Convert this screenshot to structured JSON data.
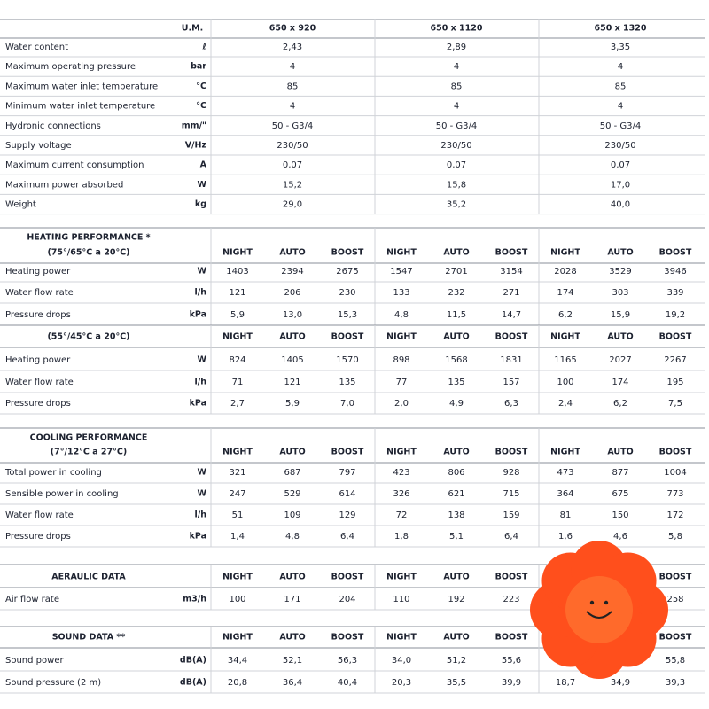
{
  "top_table": {
    "header": [
      "U.M.",
      "650 x 920",
      "650 x 1120",
      "650 x 1320"
    ],
    "rows": [
      [
        "Water content",
        "ℓ",
        "2,43",
        "2,89",
        "3,35"
      ],
      [
        "Maximum operating pressure",
        "bar",
        "4",
        "4",
        "4"
      ],
      [
        "Maximum water inlet temperature",
        "°C",
        "85",
        "85",
        "85"
      ],
      [
        "Minimum water inlet temperature",
        "°C",
        "4",
        "4",
        "4"
      ],
      [
        "Hydronic connections",
        "mm/\"",
        "50 - G3/4",
        "50 - G3/4",
        "50 - G3/4"
      ],
      [
        "Supply voltage",
        "V/Hz",
        "230/50",
        "230/50",
        "230/50"
      ],
      [
        "Maximum current consumption",
        "A",
        "0,07",
        "0,07",
        "0,07"
      ],
      [
        "Maximum power absorbed",
        "W",
        "15,2",
        "15,8",
        "17,0"
      ],
      [
        "Weight",
        "kg",
        "29,0",
        "35,2",
        "40,0"
      ]
    ]
  },
  "sections": [
    {
      "title": [
        "HEATING PERFORMANCE *",
        "(75°/65°C a 20°C)"
      ],
      "columns": [
        "NIGHT",
        "AUTO",
        "BOOST",
        "NIGHT",
        "AUTO",
        "BOOST",
        "NIGHT",
        "AUTO",
        "BOOST"
      ],
      "rows": [
        [
          "Heating power",
          "W",
          "1403",
          "2394",
          "2675",
          "1547",
          "2701",
          "3154",
          "2028",
          "3529",
          "3946"
        ],
        [
          "Water flow rate",
          "l/h",
          "121",
          "206",
          "230",
          "133",
          "232",
          "271",
          "174",
          "303",
          "339"
        ],
        [
          "Pressure drops",
          "kPa",
          "5,9",
          "13,0",
          "15,3",
          "4,8",
          "11,5",
          "14,7",
          "6,2",
          "15,9",
          "19,2"
        ]
      ]
    },
    {
      "title": [
        "(55°/45°C a 20°C)"
      ],
      "columns": [
        "NIGHT",
        "AUTO",
        "BOOST",
        "NIGHT",
        "AUTO",
        "BOOST",
        "NIGHT",
        "AUTO",
        "BOOST"
      ],
      "rows": [
        [
          "Heating power",
          "W",
          "824",
          "1405",
          "1570",
          "898",
          "1568",
          "1831",
          "1165",
          "2027",
          "2267"
        ],
        [
          "Water flow rate",
          "l/h",
          "71",
          "121",
          "135",
          "77",
          "135",
          "157",
          "100",
          "174",
          "195"
        ],
        [
          "Pressure drops",
          "kPa",
          "2,7",
          "5,9",
          "7,0",
          "2,0",
          "4,9",
          "6,3",
          "2,4",
          "6,2",
          "7,5"
        ]
      ]
    },
    {
      "title": [
        "COOLING PERFORMANCE",
        "(7°/12°C a 27°C)"
      ],
      "columns": [
        "NIGHT",
        "AUTO",
        "BOOST",
        "NIGHT",
        "AUTO",
        "BOOST",
        "NIGHT",
        "AUTO",
        "BOOST"
      ],
      "rows": [
        [
          "Total power in cooling",
          "W",
          "321",
          "687",
          "797",
          "423",
          "806",
          "928",
          "473",
          "877",
          "1004"
        ],
        [
          "Sensible power in cooling",
          "W",
          "247",
          "529",
          "614",
          "326",
          "621",
          "715",
          "364",
          "675",
          "773"
        ],
        [
          "Water flow rate",
          "l/h",
          "51",
          "109",
          "129",
          "72",
          "138",
          "159",
          "81",
          "150",
          "172"
        ],
        [
          "Pressure drops",
          "kPa",
          "1,4",
          "4,8",
          "6,4",
          "1,8",
          "5,1",
          "6,4",
          "1,6",
          "4,6",
          "5,8"
        ]
      ]
    },
    {
      "title": [
        "AERAULIC DATA"
      ],
      "columns": [
        "NIGHT",
        "AUTO",
        "BOOST",
        "NIGHT",
        "AUTO",
        "BOOST",
        null,
        null,
        "BOOST"
      ],
      "rows": [
        [
          "Air flow rate",
          "m3/h",
          "100",
          "171",
          "204",
          "110",
          "192",
          "223",
          null,
          null,
          "258"
        ]
      ]
    },
    {
      "title": [
        "SOUND DATA **"
      ],
      "columns": [
        "NIGHT",
        "AUTO",
        "BOOST",
        "NIGHT",
        "AUTO",
        "BOOST",
        null,
        null,
        "BOOST"
      ],
      "rows": [
        [
          "Sound power",
          "dB(A)",
          "34,4",
          "52,1",
          "56,3",
          "34,0",
          "51,2",
          "55,6",
          null,
          null,
          "55,8"
        ],
        [
          "Sound pressure  (2 m)",
          "dB(A)",
          "20,8",
          "36,4",
          "40,4",
          "20,3",
          "35,5",
          "39,9",
          "18,7",
          "34,9",
          "39,3"
        ]
      ]
    }
  ]
}
